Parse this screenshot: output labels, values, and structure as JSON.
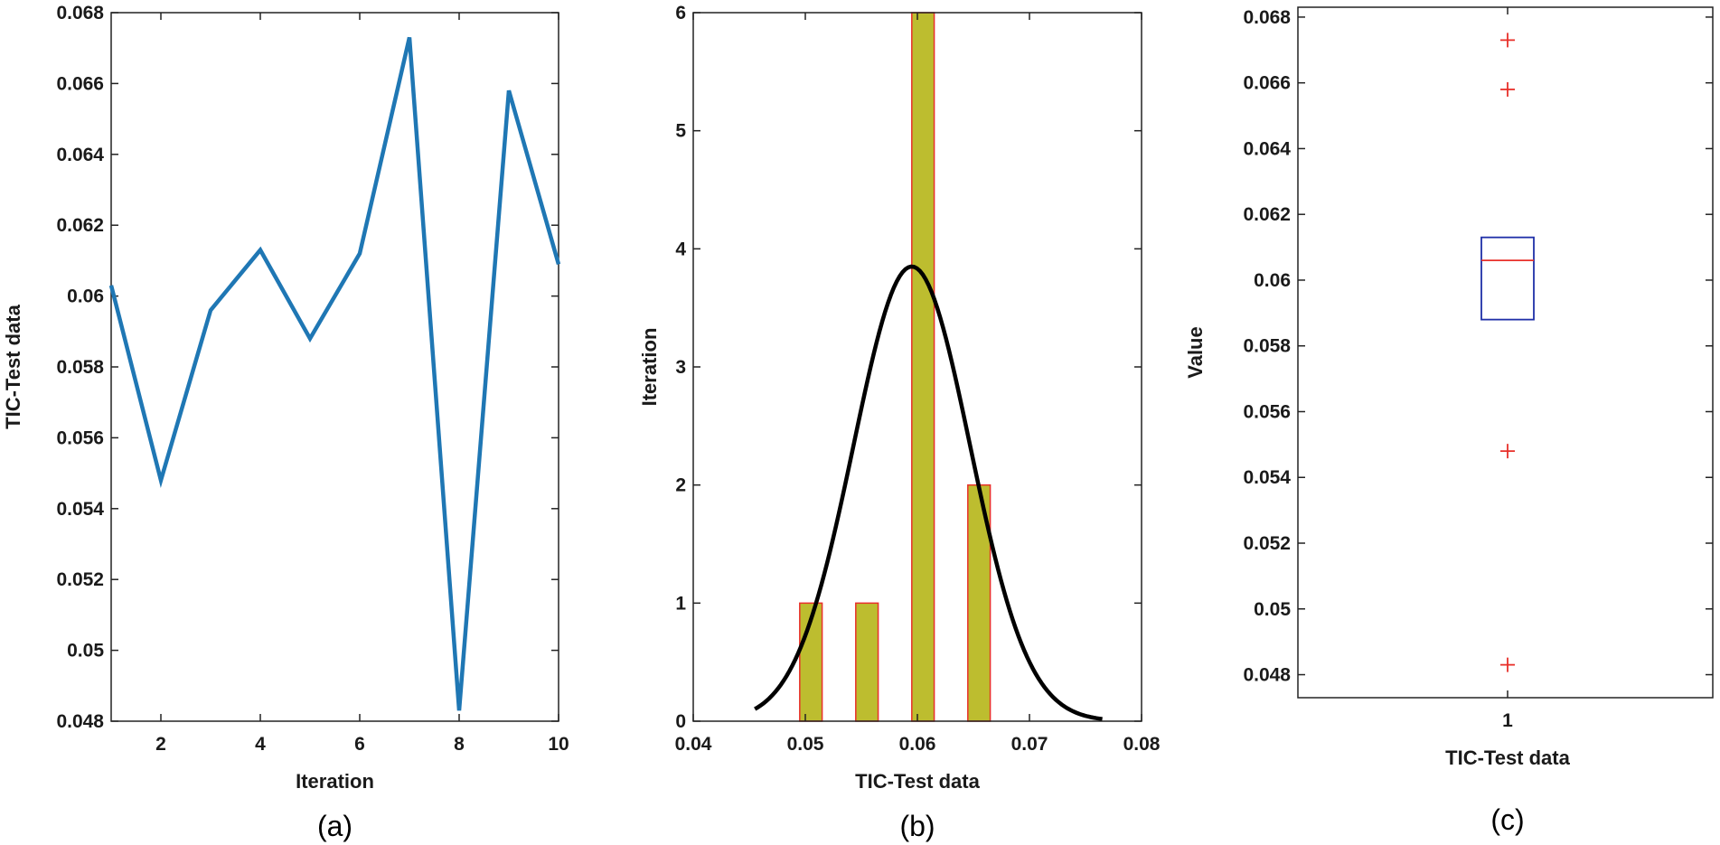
{
  "colors": {
    "line": "#1f77b4",
    "bar_fill": "#bdbd2f",
    "bar_edge": "#e8302a",
    "fit_curve": "#000000",
    "box_edge": "#1f2fa8",
    "median": "#e8302a",
    "outlier": "#e8302a",
    "axis": "#222222"
  },
  "chart_data": [
    {
      "type": "line",
      "caption": "(a)",
      "xlabel": "Iteration",
      "ylabel": "TIC-Test data",
      "xlim": [
        1,
        10
      ],
      "ylim": [
        0.048,
        0.068
      ],
      "x_ticks": [
        2,
        4,
        6,
        8,
        10
      ],
      "x_tick_labels": [
        "2",
        "4",
        "6",
        "8",
        "10"
      ],
      "y_ticks": [
        0.048,
        0.05,
        0.052,
        0.054,
        0.056,
        0.058,
        0.06,
        0.062,
        0.064,
        0.066,
        0.068
      ],
      "y_tick_labels": [
        "0.048",
        "0.05",
        "0.052",
        "0.054",
        "0.056",
        "0.058",
        "0.06",
        "0.062",
        "0.064",
        "0.066",
        "0.068"
      ],
      "x": [
        1,
        2,
        3,
        4,
        5,
        6,
        7,
        8,
        9,
        10
      ],
      "y": [
        0.0603,
        0.0548,
        0.0596,
        0.0613,
        0.0588,
        0.0612,
        0.0673,
        0.0483,
        0.0658,
        0.0609
      ]
    },
    {
      "type": "bar",
      "subtype": "histogram-with-normal-fit",
      "caption": "(b)",
      "xlabel": "TIC-Test data",
      "ylabel": "Iteration",
      "xlim": [
        0.04,
        0.08
      ],
      "ylim": [
        0,
        6
      ],
      "x_ticks": [
        0.04,
        0.05,
        0.06,
        0.07,
        0.08
      ],
      "x_tick_labels": [
        "0.04",
        "0.05",
        "0.06",
        "0.07",
        "0.08"
      ],
      "y_ticks": [
        0,
        1,
        2,
        3,
        4,
        5,
        6
      ],
      "y_tick_labels": [
        "0",
        "1",
        "2",
        "3",
        "4",
        "5",
        "6"
      ],
      "bars": [
        {
          "left": 0.0495,
          "right": 0.0515,
          "count": 1
        },
        {
          "left": 0.0545,
          "right": 0.0565,
          "count": 1
        },
        {
          "left": 0.0595,
          "right": 0.0615,
          "count": 6
        },
        {
          "left": 0.0645,
          "right": 0.0665,
          "count": 2
        }
      ],
      "fit": {
        "mean": 0.0595,
        "std": 0.0052,
        "peak": 3.85,
        "x_range": [
          0.0455,
          0.0765
        ]
      }
    },
    {
      "type": "box",
      "caption": "(c)",
      "xlabel": "TIC-Test data",
      "ylabel": "Value",
      "ylim": [
        0.0473,
        0.0683
      ],
      "y_ticks": [
        0.048,
        0.05,
        0.052,
        0.054,
        0.056,
        0.058,
        0.06,
        0.062,
        0.064,
        0.066,
        0.068
      ],
      "y_tick_labels": [
        "0.048",
        "0.05",
        "0.052",
        "0.054",
        "0.056",
        "0.058",
        "0.06",
        "0.062",
        "0.064",
        "0.066",
        "0.068"
      ],
      "x_tick_labels": [
        "1"
      ],
      "box": {
        "q1": 0.0588,
        "median": 0.0606,
        "q3": 0.0613
      },
      "outliers": [
        0.0673,
        0.0658,
        0.0548,
        0.0483
      ]
    }
  ]
}
